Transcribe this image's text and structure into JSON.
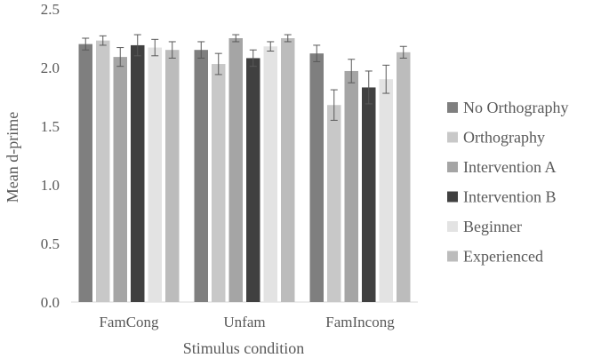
{
  "chart_data": {
    "type": "bar",
    "title": "",
    "xlabel": "Stimulus condition",
    "ylabel": "Mean d-prime",
    "ylim": [
      0,
      2.5
    ],
    "yticks": [
      "0.0",
      "0.5",
      "1.0",
      "1.5",
      "2.0",
      "2.5"
    ],
    "grid": false,
    "legend_position": "right",
    "error_bars": true,
    "categories": [
      "FamCong",
      "Unfam",
      "FamIncong"
    ],
    "series": [
      {
        "name": "No Orthography",
        "color": "#7f7f7f",
        "values": [
          2.2,
          2.15,
          2.12
        ],
        "errors": [
          0.05,
          0.07,
          0.07
        ]
      },
      {
        "name": "Orthography",
        "color": "#c8c8c8",
        "values": [
          2.23,
          2.03,
          1.68
        ],
        "errors": [
          0.04,
          0.09,
          0.13
        ]
      },
      {
        "name": "Intervention A",
        "color": "#a5a5a5",
        "values": [
          2.09,
          2.25,
          1.97
        ],
        "errors": [
          0.08,
          0.03,
          0.1
        ]
      },
      {
        "name": "Intervention B",
        "color": "#404040",
        "values": [
          2.19,
          2.08,
          1.83
        ],
        "errors": [
          0.09,
          0.07,
          0.14
        ]
      },
      {
        "name": "Beginner",
        "color": "#e3e3e3",
        "values": [
          2.17,
          2.18,
          1.9
        ],
        "errors": [
          0.07,
          0.04,
          0.12
        ]
      },
      {
        "name": "Experienced",
        "color": "#bcbcbc",
        "values": [
          2.15,
          2.25,
          2.13
        ],
        "errors": [
          0.07,
          0.03,
          0.05
        ]
      }
    ]
  }
}
